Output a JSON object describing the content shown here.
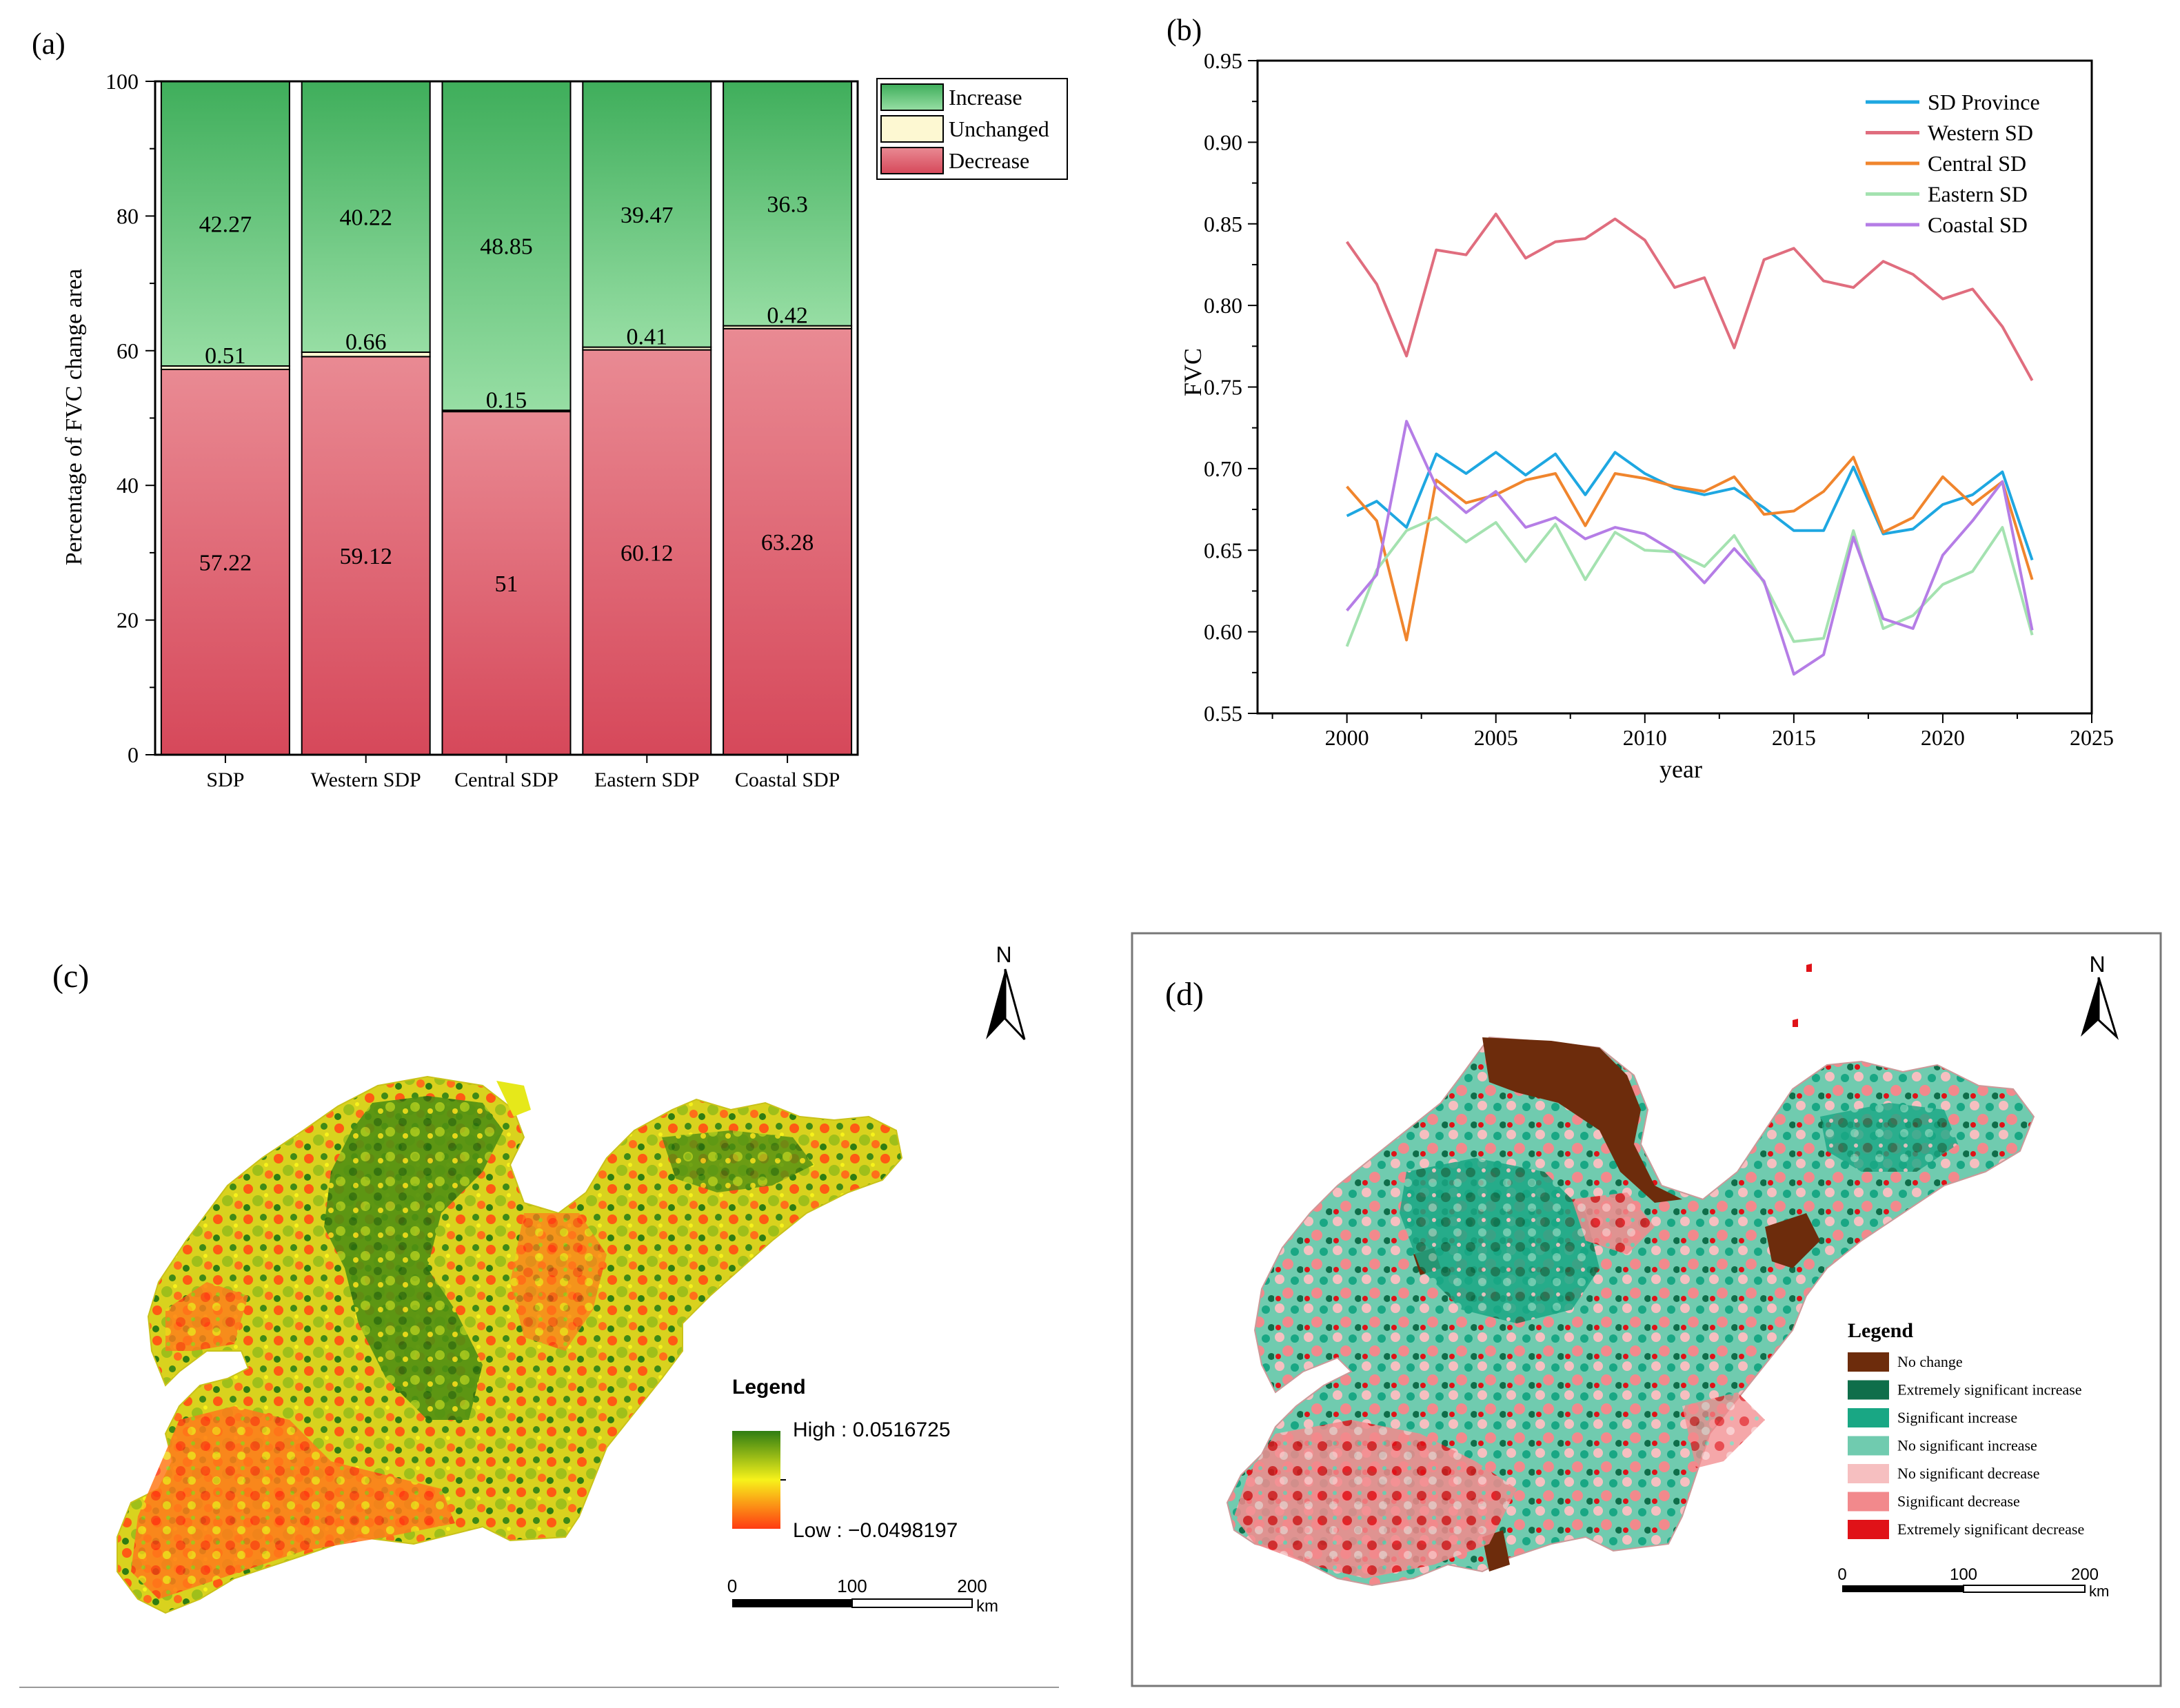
{
  "chart_data": [
    {
      "panel": "(a)",
      "type": "bar",
      "stacked": true,
      "xlabel": "",
      "ylabel": "Percentage of FVC change area",
      "ylim": [
        0,
        100
      ],
      "yticks": [
        0,
        20,
        40,
        60,
        80,
        100
      ],
      "categories": [
        "SDP",
        "Western SDP",
        "Central SDP",
        "Eastern SDP",
        "Coastal SDP"
      ],
      "series": [
        {
          "name": "Decrease",
          "values": [
            57.22,
            59.12,
            51,
            60.12,
            63.28
          ],
          "labels": [
            "57.22",
            "59.12",
            "51",
            "60.12",
            "63.28"
          ],
          "color_top": "#e98a93",
          "color_bottom": "#d6485a"
        },
        {
          "name": "Unchanged",
          "values": [
            0.51,
            0.66,
            0.15,
            0.41,
            0.42
          ],
          "labels": [
            "0.51",
            "0.66",
            "0.15",
            "0.41",
            "0.42"
          ],
          "color": "#fdf8d2"
        },
        {
          "name": "Increase",
          "values": [
            42.27,
            40.22,
            48.85,
            39.47,
            36.3
          ],
          "labels": [
            "42.27",
            "40.22",
            "48.85",
            "39.47",
            "36.3"
          ],
          "color_top": "#3fae5b",
          "color_bottom": "#97dea4"
        }
      ],
      "legend_position": "top-right",
      "legend": [
        "Increase",
        "Unchanged",
        "Decrease"
      ]
    },
    {
      "panel": "(b)",
      "type": "line",
      "xlabel": "year",
      "ylabel": "FVC",
      "xlim": [
        1997,
        2025
      ],
      "ylim": [
        0.55,
        0.95
      ],
      "xticks": [
        2000,
        2005,
        2010,
        2015,
        2020,
        2025
      ],
      "yticks": [
        "0.55",
        "0.60",
        "0.65",
        "0.70",
        "0.75",
        "0.80",
        "0.85",
        "0.90",
        "0.95"
      ],
      "x": [
        2000,
        2001,
        2002,
        2003,
        2004,
        2005,
        2006,
        2007,
        2008,
        2009,
        2010,
        2011,
        2012,
        2013,
        2014,
        2015,
        2016,
        2017,
        2018,
        2019,
        2020,
        2021,
        2022,
        2023
      ],
      "series": [
        {
          "name": "SD Province",
          "color": "#1ea7e1",
          "values": [
            0.671,
            0.68,
            0.664,
            0.709,
            0.697,
            0.71,
            0.696,
            0.709,
            0.684,
            0.71,
            0.697,
            0.688,
            0.684,
            0.688,
            0.676,
            0.662,
            0.662,
            0.701,
            0.66,
            0.663,
            0.678,
            0.684,
            0.698,
            0.644
          ]
        },
        {
          "name": "Western SD",
          "color": "#e06d7e",
          "values": [
            0.839,
            0.813,
            0.769,
            0.834,
            0.831,
            0.856,
            0.829,
            0.839,
            0.841,
            0.853,
            0.84,
            0.811,
            0.817,
            0.774,
            0.828,
            0.835,
            0.815,
            0.811,
            0.827,
            0.819,
            0.804,
            0.81,
            0.787,
            0.754
          ]
        },
        {
          "name": "Central SD",
          "color": "#f0852d",
          "values": [
            0.689,
            0.668,
            0.595,
            0.693,
            0.679,
            0.684,
            0.693,
            0.697,
            0.665,
            0.697,
            0.694,
            0.689,
            0.686,
            0.695,
            0.672,
            0.674,
            0.686,
            0.707,
            0.661,
            0.67,
            0.695,
            0.678,
            0.692,
            0.632
          ]
        },
        {
          "name": "Eastern SD",
          "color": "#a4e2b0",
          "values": [
            0.591,
            0.638,
            0.662,
            0.67,
            0.655,
            0.667,
            0.643,
            0.666,
            0.632,
            0.661,
            0.65,
            0.649,
            0.64,
            0.659,
            0.63,
            0.594,
            0.596,
            0.662,
            0.602,
            0.61,
            0.629,
            0.637,
            0.664,
            0.598
          ]
        },
        {
          "name": "Coastal SD",
          "color": "#b57de6",
          "values": [
            0.613,
            0.635,
            0.729,
            0.689,
            0.673,
            0.686,
            0.664,
            0.67,
            0.657,
            0.664,
            0.66,
            0.649,
            0.63,
            0.651,
            0.631,
            0.574,
            0.586,
            0.658,
            0.608,
            0.602,
            0.647,
            0.668,
            0.692,
            0.601
          ]
        }
      ],
      "legend_position": "top-right"
    }
  ],
  "panels": {
    "a": {
      "label": "(a)"
    },
    "b": {
      "label": "(b)"
    },
    "c": {
      "label": "(c)",
      "north": "N",
      "legend_title": "Legend",
      "high_label": "High : 0.0516725",
      "low_label": "Low : −0.0498197",
      "ramp_colors": [
        "#2f7d12",
        "#f7f21a",
        "#ff3b12"
      ],
      "scale": {
        "ticks": [
          "0",
          "100",
          "200"
        ],
        "unit": "km"
      }
    },
    "d": {
      "label": "(d)",
      "north": "N",
      "legend_title": "Legend",
      "classes": [
        {
          "name": "No change",
          "color": "#6d2c0c"
        },
        {
          "name": "Extremely significant increase",
          "color": "#0f6e4a"
        },
        {
          "name": "Significant increase",
          "color": "#19a784"
        },
        {
          "name": "No significant increase",
          "color": "#70cbaf"
        },
        {
          "name": "No significant decrease",
          "color": "#f6bfc0"
        },
        {
          "name": "Significant decrease",
          "color": "#f2898c"
        },
        {
          "name": "Extremely significant decrease",
          "color": "#e01218"
        }
      ],
      "scale": {
        "ticks": [
          "0",
          "100",
          "200"
        ],
        "unit": "km"
      }
    }
  }
}
